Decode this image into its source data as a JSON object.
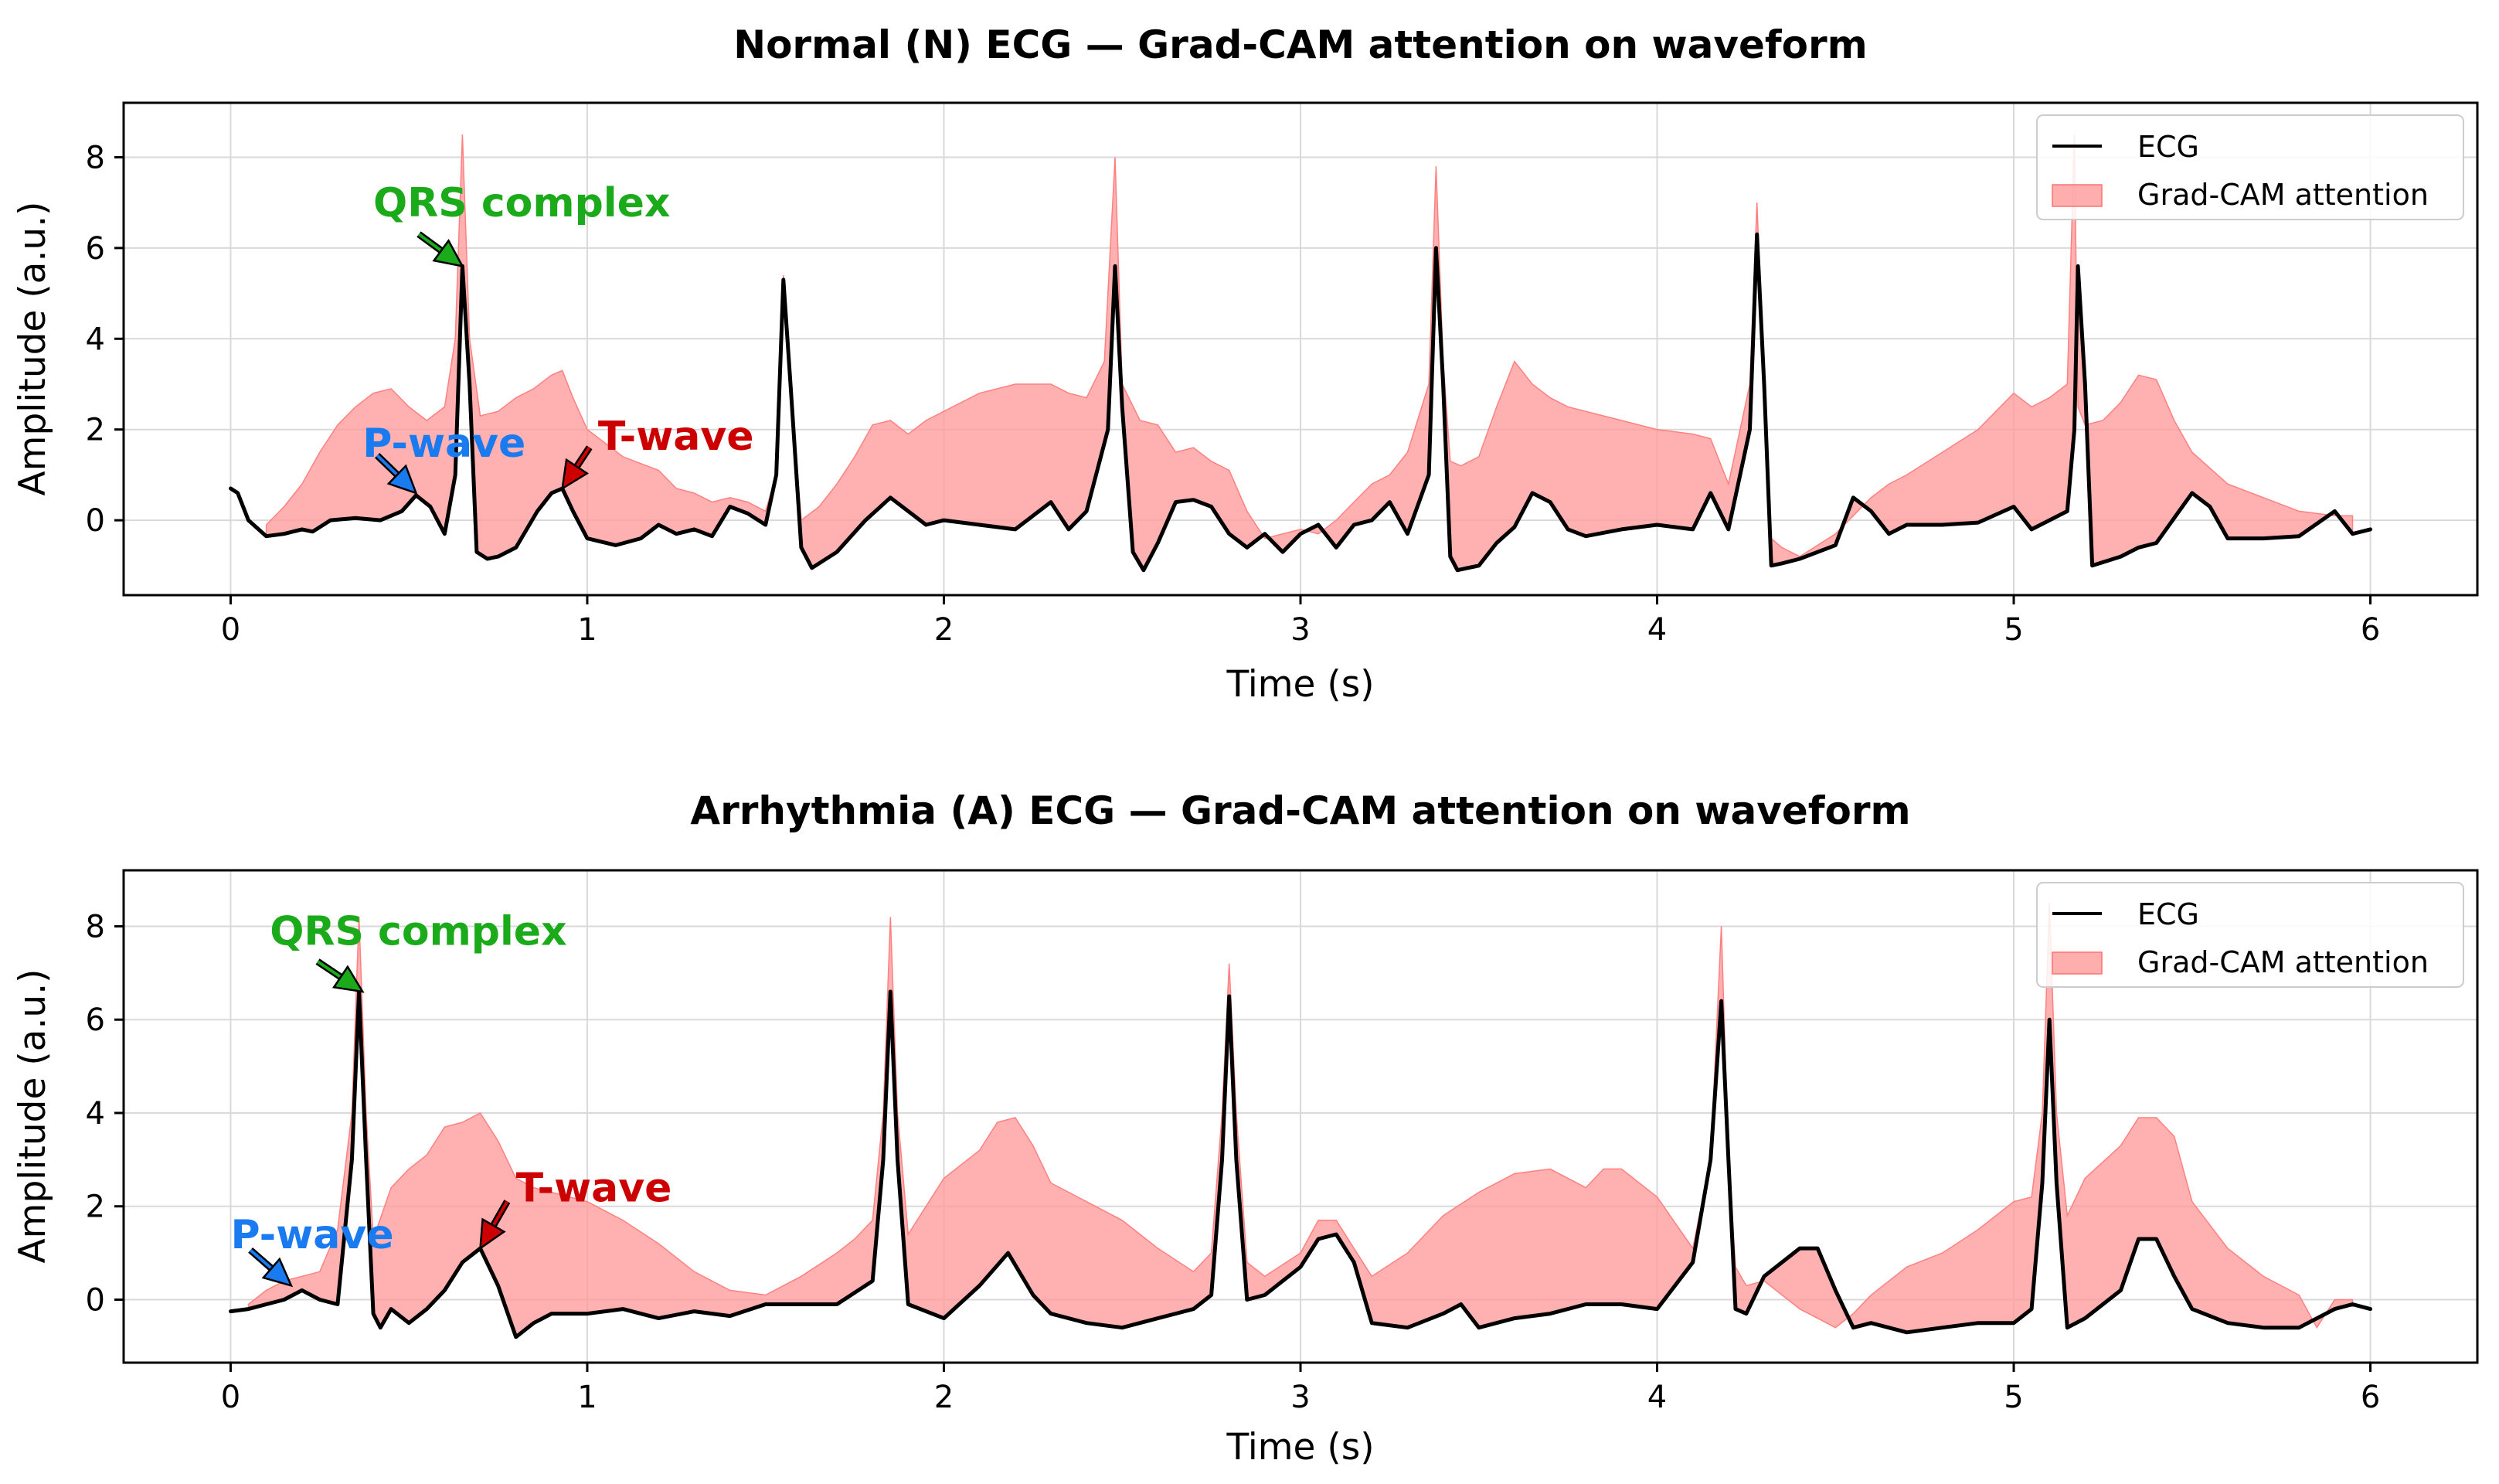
{
  "chart_data": [
    {
      "type": "line",
      "title": "Normal (N) ECG — Grad-CAM attention on waveform",
      "xlabel": "Time (s)",
      "ylabel": "Amplitude (a.u.)",
      "xlim": [
        -0.3,
        6.3
      ],
      "ylim": [
        -1.65,
        9.2
      ],
      "xticks": [
        0,
        1,
        2,
        3,
        4,
        5,
        6
      ],
      "yticks": [
        0,
        2,
        4,
        6,
        8
      ],
      "grid": true,
      "legend": {
        "position": "top-right",
        "entries": [
          "ECG",
          "Grad-CAM attention"
        ]
      },
      "colors": {
        "ecg": "#000000",
        "attention": "#ff9a9a"
      },
      "series": [
        {
          "name": "ECG",
          "x": [
            0,
            0.02,
            0.05,
            0.1,
            0.15,
            0.2,
            0.23,
            0.28,
            0.35,
            0.42,
            0.48,
            0.52,
            0.56,
            0.6,
            0.63,
            0.65,
            0.67,
            0.69,
            0.72,
            0.75,
            0.8,
            0.86,
            0.9,
            0.93,
            0.96,
            1.0,
            1.08,
            1.15,
            1.2,
            1.25,
            1.3,
            1.35,
            1.4,
            1.45,
            1.5,
            1.53,
            1.55,
            1.57,
            1.6,
            1.63,
            1.7,
            1.78,
            1.85,
            1.9,
            1.95,
            2.0,
            2.1,
            2.2,
            2.3,
            2.35,
            2.4,
            2.46,
            2.48,
            2.5,
            2.53,
            2.56,
            2.6,
            2.65,
            2.7,
            2.75,
            2.8,
            2.85,
            2.9,
            2.95,
            3.0,
            3.05,
            3.1,
            3.15,
            3.2,
            3.25,
            3.3,
            3.36,
            3.38,
            3.4,
            3.42,
            3.44,
            3.5,
            3.55,
            3.6,
            3.65,
            3.7,
            3.75,
            3.8,
            3.9,
            4.0,
            4.1,
            4.15,
            4.2,
            4.26,
            4.28,
            4.3,
            4.32,
            4.35,
            4.4,
            4.5,
            4.55,
            4.6,
            4.65,
            4.7,
            4.8,
            4.9,
            5.0,
            5.05,
            5.1,
            5.15,
            5.17,
            5.18,
            5.2,
            5.22,
            5.3,
            5.35,
            5.4,
            5.45,
            5.5,
            5.55,
            5.6,
            5.7,
            5.8,
            5.9,
            5.95,
            6.0
          ],
          "values": [
            0.7,
            0.6,
            0,
            -0.35,
            -0.3,
            -0.2,
            -0.25,
            0,
            0.05,
            0,
            0.2,
            0.55,
            0.3,
            -0.3,
            1,
            5.6,
            3,
            -0.7,
            -0.85,
            -0.8,
            -0.6,
            0.2,
            0.6,
            0.7,
            0.2,
            -0.4,
            -0.55,
            -0.4,
            -0.1,
            -0.3,
            -0.2,
            -0.35,
            0.3,
            0.15,
            -0.1,
            1,
            5.3,
            3,
            -0.6,
            -1.05,
            -0.7,
            0,
            0.5,
            0.2,
            -0.1,
            0,
            -0.1,
            -0.2,
            0.4,
            -0.2,
            0.2,
            2,
            5.6,
            2.5,
            -0.7,
            -1.1,
            -0.5,
            0.4,
            0.45,
            0.3,
            -0.3,
            -0.6,
            -0.3,
            -0.7,
            -0.3,
            -0.1,
            -0.6,
            -0.1,
            0,
            0.4,
            -0.3,
            1,
            6,
            3,
            -0.8,
            -1.1,
            -1,
            -0.5,
            -0.15,
            0.6,
            0.4,
            -0.2,
            -0.35,
            -0.2,
            -0.1,
            -0.2,
            0.6,
            -0.2,
            2,
            6.3,
            3,
            -1,
            -0.95,
            -0.85,
            -0.55,
            0.5,
            0.2,
            -0.3,
            -0.1,
            -0.1,
            -0.05,
            0.3,
            -0.2,
            0,
            0.2,
            2,
            5.6,
            3,
            -1,
            -0.8,
            -0.6,
            -0.5,
            0.05,
            0.6,
            0.3,
            -0.4,
            -0.4,
            -0.35,
            0.2,
            -0.3,
            -0.2
          ]
        },
        {
          "name": "Grad-CAM attention",
          "x": [
            0.1,
            0.15,
            0.2,
            0.25,
            0.3,
            0.35,
            0.4,
            0.45,
            0.5,
            0.55,
            0.6,
            0.63,
            0.65,
            0.67,
            0.7,
            0.75,
            0.8,
            0.85,
            0.9,
            0.93,
            0.96,
            1.0,
            1.1,
            1.2,
            1.25,
            1.3,
            1.35,
            1.4,
            1.45,
            1.5,
            1.53,
            1.55,
            1.57,
            1.6,
            1.65,
            1.7,
            1.75,
            1.8,
            1.85,
            1.9,
            1.95,
            2.0,
            2.1,
            2.2,
            2.3,
            2.35,
            2.4,
            2.45,
            2.48,
            2.5,
            2.55,
            2.6,
            2.65,
            2.7,
            2.75,
            2.8,
            2.85,
            2.9,
            2.95,
            3.0,
            3.05,
            3.1,
            3.15,
            3.2,
            3.25,
            3.3,
            3.36,
            3.38,
            3.4,
            3.42,
            3.45,
            3.5,
            3.55,
            3.6,
            3.65,
            3.7,
            3.75,
            3.8,
            3.9,
            4.0,
            4.1,
            4.15,
            4.2,
            4.26,
            4.28,
            4.3,
            4.32,
            4.35,
            4.4,
            4.5,
            4.55,
            4.6,
            4.65,
            4.7,
            4.8,
            4.9,
            5.0,
            5.05,
            5.1,
            5.15,
            5.17,
            5.18,
            5.2,
            5.25,
            5.3,
            5.35,
            5.4,
            5.45,
            5.5,
            5.6,
            5.7,
            5.8,
            5.9,
            5.95
          ],
          "values": [
            -0.1,
            0.3,
            0.8,
            1.5,
            2.1,
            2.5,
            2.8,
            2.9,
            2.5,
            2.2,
            2.5,
            4,
            8.5,
            4,
            2.3,
            2.4,
            2.7,
            2.9,
            3.2,
            3.3,
            2.7,
            2,
            1.4,
            1.1,
            0.7,
            0.6,
            0.4,
            0.5,
            0.4,
            0.2,
            1,
            5.4,
            3,
            0,
            0.3,
            0.8,
            1.4,
            2.1,
            2.2,
            1.9,
            2.2,
            2.4,
            2.8,
            3,
            3,
            2.8,
            2.7,
            3.5,
            8,
            3,
            2.2,
            2.1,
            1.5,
            1.6,
            1.3,
            1.1,
            0.2,
            -0.4,
            -0.3,
            -0.2,
            -0.3,
            0,
            0.4,
            0.8,
            1,
            1.5,
            3,
            7.8,
            3.5,
            1.3,
            1.2,
            1.4,
            2.5,
            3.5,
            3,
            2.7,
            2.5,
            2.4,
            2.2,
            2,
            1.9,
            1.8,
            0.8,
            3,
            7,
            3,
            -0.4,
            -0.6,
            -0.8,
            -0.3,
            0.1,
            0.5,
            0.8,
            1,
            1.5,
            2,
            2.8,
            2.5,
            2.7,
            3,
            8.5,
            2.5,
            2.1,
            2.2,
            2.6,
            3.2,
            3.1,
            2.2,
            1.5,
            0.8,
            0.5,
            0.2,
            0.1,
            0.1
          ]
        }
      ],
      "annotations": [
        {
          "label": "QRS complex",
          "color": "#1aaa1a",
          "x": 0.65,
          "y": 5.6,
          "text_x": 0.4,
          "text_y": 6.7
        },
        {
          "label": "P-wave",
          "color": "#1a7af0",
          "x": 0.52,
          "y": 0.6,
          "text_x": 0.37,
          "text_y": 1.4
        },
        {
          "label": "T-wave",
          "color": "#cc0000",
          "x": 0.93,
          "y": 0.7,
          "text_x": 1.03,
          "text_y": 1.55
        }
      ]
    },
    {
      "type": "line",
      "title": "Arrhythmia (A) ECG — Grad-CAM attention on waveform",
      "xlabel": "Time (s)",
      "ylabel": "Amplitude (a.u.)",
      "xlim": [
        -0.3,
        6.3
      ],
      "ylim": [
        -1.35,
        9.2
      ],
      "xticks": [
        0,
        1,
        2,
        3,
        4,
        5,
        6
      ],
      "yticks": [
        0,
        2,
        4,
        6,
        8
      ],
      "grid": true,
      "legend": {
        "position": "top-right",
        "entries": [
          "ECG",
          "Grad-CAM attention"
        ]
      },
      "colors": {
        "ecg": "#000000",
        "attention": "#ff9a9a"
      },
      "series": [
        {
          "name": "ECG",
          "x": [
            0,
            0.05,
            0.1,
            0.15,
            0.2,
            0.25,
            0.3,
            0.34,
            0.36,
            0.38,
            0.4,
            0.42,
            0.45,
            0.5,
            0.55,
            0.6,
            0.65,
            0.7,
            0.75,
            0.8,
            0.85,
            0.9,
            1.0,
            1.1,
            1.2,
            1.3,
            1.4,
            1.5,
            1.6,
            1.7,
            1.8,
            1.83,
            1.85,
            1.87,
            1.9,
            2.0,
            2.1,
            2.18,
            2.25,
            2.3,
            2.4,
            2.5,
            2.6,
            2.7,
            2.75,
            2.78,
            2.8,
            2.82,
            2.85,
            2.9,
            3.0,
            3.05,
            3.1,
            3.15,
            3.2,
            3.3,
            3.4,
            3.45,
            3.5,
            3.6,
            3.7,
            3.8,
            3.9,
            4.0,
            4.1,
            4.15,
            4.18,
            4.2,
            4.22,
            4.25,
            4.3,
            4.4,
            4.45,
            4.5,
            4.55,
            4.6,
            4.7,
            4.8,
            4.9,
            5.0,
            5.05,
            5.08,
            5.1,
            5.12,
            5.15,
            5.2,
            5.3,
            5.35,
            5.4,
            5.45,
            5.5,
            5.6,
            5.7,
            5.8,
            5.9,
            5.95,
            6.0
          ],
          "values": [
            -0.25,
            -0.2,
            -0.1,
            0,
            0.2,
            0,
            -0.1,
            3,
            6.6,
            3,
            -0.3,
            -0.6,
            -0.2,
            -0.5,
            -0.2,
            0.2,
            0.8,
            1.1,
            0.3,
            -0.8,
            -0.5,
            -0.3,
            -0.3,
            -0.2,
            -0.4,
            -0.25,
            -0.35,
            -0.1,
            -0.1,
            -0.1,
            0.4,
            3,
            6.6,
            3,
            -0.1,
            -0.4,
            0.3,
            1,
            0.1,
            -0.3,
            -0.5,
            -0.6,
            -0.4,
            -0.2,
            0.1,
            3,
            6.5,
            3,
            0,
            0.1,
            0.7,
            1.3,
            1.4,
            0.8,
            -0.5,
            -0.6,
            -0.3,
            -0.1,
            -0.6,
            -0.4,
            -0.3,
            -0.1,
            -0.1,
            -0.2,
            0.8,
            3,
            6.4,
            3,
            -0.2,
            -0.3,
            0.5,
            1.1,
            1.1,
            0.2,
            -0.6,
            -0.5,
            -0.7,
            -0.6,
            -0.5,
            -0.5,
            -0.2,
            2.5,
            6,
            2.5,
            -0.6,
            -0.4,
            0.2,
            1.3,
            1.3,
            0.5,
            -0.2,
            -0.5,
            -0.6,
            -0.6,
            -0.2,
            -0.1,
            -0.2
          ]
        },
        {
          "name": "Grad-CAM attention",
          "x": [
            0.05,
            0.1,
            0.15,
            0.2,
            0.25,
            0.3,
            0.34,
            0.36,
            0.38,
            0.4,
            0.45,
            0.5,
            0.55,
            0.6,
            0.65,
            0.7,
            0.75,
            0.8,
            0.85,
            0.9,
            1.0,
            1.1,
            1.2,
            1.3,
            1.4,
            1.5,
            1.6,
            1.7,
            1.75,
            1.8,
            1.83,
            1.85,
            1.87,
            1.9,
            1.95,
            2.0,
            2.1,
            2.15,
            2.2,
            2.25,
            2.3,
            2.4,
            2.5,
            2.6,
            2.7,
            2.75,
            2.78,
            2.8,
            2.82,
            2.85,
            2.9,
            3.0,
            3.05,
            3.1,
            3.15,
            3.2,
            3.3,
            3.4,
            3.5,
            3.6,
            3.7,
            3.8,
            3.85,
            3.9,
            4.0,
            4.1,
            4.15,
            4.18,
            4.2,
            4.22,
            4.25,
            4.3,
            4.4,
            4.45,
            4.5,
            4.55,
            4.6,
            4.7,
            4.8,
            4.9,
            5.0,
            5.05,
            5.08,
            5.1,
            5.12,
            5.15,
            5.2,
            5.3,
            5.35,
            5.4,
            5.45,
            5.5,
            5.6,
            5.7,
            5.8,
            5.85,
            5.9,
            5.95
          ],
          "values": [
            -0.1,
            0.2,
            0.4,
            0.5,
            0.6,
            1.5,
            4,
            8.2,
            4,
            1.3,
            2.4,
            2.8,
            3.1,
            3.7,
            3.8,
            4,
            3.4,
            2.6,
            2.4,
            2.3,
            2.1,
            1.7,
            1.2,
            0.6,
            0.2,
            0.1,
            0.5,
            1,
            1.3,
            1.7,
            4,
            8.2,
            4,
            1.4,
            2,
            2.6,
            3.2,
            3.8,
            3.9,
            3.3,
            2.5,
            2.1,
            1.7,
            1.1,
            0.6,
            1,
            4,
            7.2,
            4,
            0.8,
            0.5,
            1,
            1.7,
            1.7,
            1.1,
            0.5,
            1,
            1.8,
            2.3,
            2.7,
            2.8,
            2.4,
            2.8,
            2.8,
            2.2,
            1.1,
            3,
            8,
            3,
            0.7,
            0.3,
            0.4,
            -0.2,
            -0.4,
            -0.6,
            -0.3,
            0.1,
            0.7,
            1,
            1.5,
            2.1,
            2.2,
            4,
            8.5,
            4,
            1.8,
            2.6,
            3.3,
            3.9,
            3.9,
            3.5,
            2.1,
            1.1,
            0.5,
            0.1,
            -0.6,
            0,
            0
          ]
        }
      ],
      "annotations": [
        {
          "label": "QRS complex",
          "color": "#1aaa1a",
          "x": 0.37,
          "y": 6.6,
          "text_x": 0.11,
          "text_y": 7.6
        },
        {
          "label": "P-wave",
          "color": "#1a7af0",
          "x": 0.17,
          "y": 0.3,
          "text_x": 0,
          "text_y": 1.1
        },
        {
          "label": "T-wave",
          "color": "#cc0000",
          "x": 0.7,
          "y": 1.1,
          "text_x": 0.8,
          "text_y": 2.1
        }
      ]
    }
  ]
}
